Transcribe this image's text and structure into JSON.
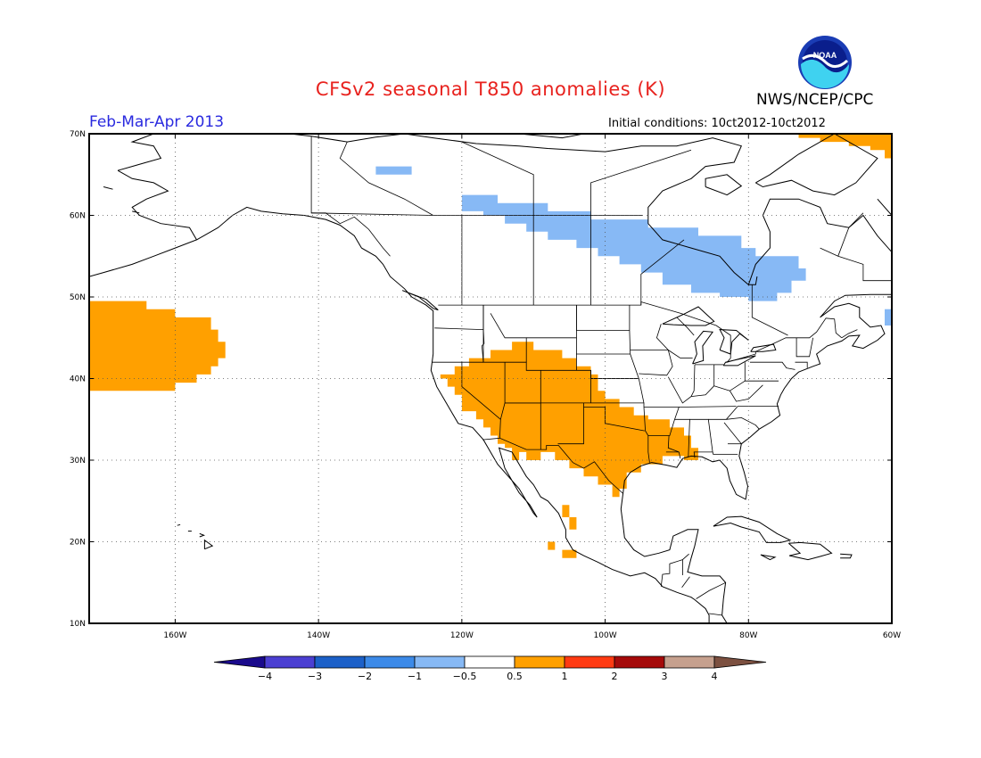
{
  "title": "CFSv2 seasonal T850 anomalies (K)",
  "agency": "NWS/NCEP/CPC",
  "logo_text": "NOAA",
  "period": "Feb-Mar-Apr 2013",
  "initial_conditions": "Initial conditions: 10ct2012-10ct2012",
  "map": {
    "lon_range": [
      -172,
      -60
    ],
    "lat_range": [
      10,
      70
    ],
    "lon_ticks": [
      {
        "lon": -160,
        "label": "160W"
      },
      {
        "lon": -140,
        "label": "140W"
      },
      {
        "lon": -120,
        "label": "120W"
      },
      {
        "lon": -100,
        "label": "100W"
      },
      {
        "lon": -80,
        "label": "80W"
      },
      {
        "lon": -60,
        "label": "60W"
      }
    ],
    "lat_ticks": [
      {
        "lat": 70,
        "label": "70N"
      },
      {
        "lat": 60,
        "label": "60N"
      },
      {
        "lat": 50,
        "label": "50N"
      },
      {
        "lat": 40,
        "label": "40N"
      },
      {
        "lat": 30,
        "label": "30N"
      },
      {
        "lat": 20,
        "label": "20N"
      },
      {
        "lat": 10,
        "label": "10N"
      }
    ],
    "grid_lines": "dotted",
    "warm_color": "#ffa000",
    "cool_color": "#87b9f5",
    "anomaly_regions": [
      {
        "name": "north-pacific-warm",
        "category": "0.5 to 1",
        "color": "#ffa000",
        "polygon": [
          [
            -172,
            49.5
          ],
          [
            -164,
            49.5
          ],
          [
            -164,
            48.5
          ],
          [
            -160,
            48.5
          ],
          [
            -160,
            47.5
          ],
          [
            -155,
            47.5
          ],
          [
            -155,
            46
          ],
          [
            -154,
            46
          ],
          [
            -154,
            44.5
          ],
          [
            -153,
            44.5
          ],
          [
            -153,
            42.5
          ],
          [
            -154,
            42.5
          ],
          [
            -154,
            41.5
          ],
          [
            -155,
            41.5
          ],
          [
            -155,
            40.5
          ],
          [
            -157,
            40.5
          ],
          [
            -157,
            39.5
          ],
          [
            -160,
            39.5
          ],
          [
            -160,
            38.5
          ],
          [
            -172,
            38.5
          ]
        ]
      },
      {
        "name": "western-us-mexico-warm",
        "category": "0.5 to 1",
        "color": "#ffa000",
        "polygon": [
          [
            -121,
            41.5
          ],
          [
            -119,
            41.5
          ],
          [
            -119,
            42.5
          ],
          [
            -116,
            42.5
          ],
          [
            -116,
            43.5
          ],
          [
            -113,
            43.5
          ],
          [
            -113,
            44.5
          ],
          [
            -110,
            44.5
          ],
          [
            -110,
            43.5
          ],
          [
            -106,
            43.5
          ],
          [
            -106,
            42.5
          ],
          [
            -104,
            42.5
          ],
          [
            -104,
            41.5
          ],
          [
            -102,
            41.5
          ],
          [
            -102,
            40.5
          ],
          [
            -101,
            40.5
          ],
          [
            -101,
            38.5
          ],
          [
            -100,
            38.5
          ],
          [
            -100,
            37.5
          ],
          [
            -98,
            37.5
          ],
          [
            -98,
            36.5
          ],
          [
            -96,
            36.5
          ],
          [
            -96,
            35.5
          ],
          [
            -94,
            35.5
          ],
          [
            -94,
            35
          ],
          [
            -91,
            35
          ],
          [
            -91,
            34
          ],
          [
            -89,
            34
          ],
          [
            -89,
            33
          ],
          [
            -88,
            33
          ],
          [
            -88,
            31.5
          ],
          [
            -87,
            31.5
          ],
          [
            -87,
            30
          ],
          [
            -89,
            30
          ],
          [
            -89,
            30.5
          ],
          [
            -92,
            30.5
          ],
          [
            -92,
            29.5
          ],
          [
            -95,
            29.5
          ],
          [
            -95,
            28.5
          ],
          [
            -97,
            28.5
          ],
          [
            -97,
            26.5
          ],
          [
            -98,
            26.5
          ],
          [
            -98,
            25.5
          ],
          [
            -99,
            25.5
          ],
          [
            -99,
            27
          ],
          [
            -101,
            27
          ],
          [
            -101,
            28
          ],
          [
            -103,
            28
          ],
          [
            -103,
            29
          ],
          [
            -105,
            29
          ],
          [
            -105,
            30
          ],
          [
            -107,
            30
          ],
          [
            -107,
            31
          ],
          [
            -109,
            31
          ],
          [
            -109,
            30
          ],
          [
            -111,
            30
          ],
          [
            -111,
            31
          ],
          [
            -112,
            31
          ],
          [
            -112,
            30
          ],
          [
            -113,
            30
          ],
          [
            -113,
            31.5
          ],
          [
            -114,
            31.5
          ],
          [
            -114,
            32
          ],
          [
            -115,
            32
          ],
          [
            -115,
            33
          ],
          [
            -116,
            33
          ],
          [
            -116,
            34
          ],
          [
            -117,
            34
          ],
          [
            -117,
            35
          ],
          [
            -118,
            35
          ],
          [
            -118,
            36
          ],
          [
            -120,
            36
          ],
          [
            -120,
            38
          ],
          [
            -121,
            38
          ],
          [
            -121,
            39
          ],
          [
            -122,
            39
          ],
          [
            -122,
            40
          ],
          [
            -123,
            40
          ],
          [
            -123,
            40.5
          ],
          [
            -121,
            40.5
          ]
        ]
      },
      {
        "name": "mexico-pacific-warm-1",
        "category": "0.5 to 1",
        "color": "#ffa000",
        "polygon": [
          [
            -106,
            24.5
          ],
          [
            -105,
            24.5
          ],
          [
            -105,
            23
          ],
          [
            -104,
            23
          ],
          [
            -104,
            21.5
          ],
          [
            -105,
            21.5
          ],
          [
            -105,
            23
          ],
          [
            -106,
            23
          ]
        ]
      },
      {
        "name": "mexico-pacific-warm-2",
        "category": "0.5 to 1",
        "color": "#ffa000",
        "polygon": [
          [
            -108,
            20
          ],
          [
            -107,
            20
          ],
          [
            -107,
            19
          ],
          [
            -108,
            19
          ]
        ]
      },
      {
        "name": "mexico-pacific-warm-3",
        "category": "0.5 to 1",
        "color": "#ffa000",
        "polygon": [
          [
            -106,
            19
          ],
          [
            -104,
            19
          ],
          [
            -104,
            18
          ],
          [
            -106,
            18
          ]
        ]
      },
      {
        "name": "greenland-warm",
        "category": "0.5 to 1",
        "color": "#ffa000",
        "polygon": [
          [
            -73,
            70
          ],
          [
            -60,
            70
          ],
          [
            -60,
            67
          ],
          [
            -61,
            67
          ],
          [
            -61,
            68
          ],
          [
            -63,
            68
          ],
          [
            -63,
            68.5
          ],
          [
            -66,
            68.5
          ],
          [
            -66,
            69
          ],
          [
            -70,
            69
          ],
          [
            -70,
            69.5
          ],
          [
            -73,
            69.5
          ]
        ]
      },
      {
        "name": "canada-cool",
        "category": "-1 to -0.5",
        "color": "#87b9f5",
        "polygon": [
          [
            -120,
            62.5
          ],
          [
            -115,
            62.5
          ],
          [
            -115,
            61.5
          ],
          [
            -108,
            61.5
          ],
          [
            -108,
            60.5
          ],
          [
            -102,
            60.5
          ],
          [
            -102,
            59.5
          ],
          [
            -94,
            59.5
          ],
          [
            -94,
            58.5
          ],
          [
            -87,
            58.5
          ],
          [
            -87,
            57.5
          ],
          [
            -81,
            57.5
          ],
          [
            -81,
            56
          ],
          [
            -79,
            56
          ],
          [
            -79,
            55
          ],
          [
            -73,
            55
          ],
          [
            -73,
            53.5
          ],
          [
            -72,
            53.5
          ],
          [
            -72,
            52
          ],
          [
            -74,
            52
          ],
          [
            -74,
            50.5
          ],
          [
            -76,
            50.5
          ],
          [
            -76,
            49.5
          ],
          [
            -80,
            49.5
          ],
          [
            -80,
            50
          ],
          [
            -84,
            50
          ],
          [
            -84,
            50.5
          ],
          [
            -88,
            50.5
          ],
          [
            -88,
            51.5
          ],
          [
            -92,
            51.5
          ],
          [
            -92,
            53
          ],
          [
            -95,
            53
          ],
          [
            -95,
            54
          ],
          [
            -98,
            54
          ],
          [
            -98,
            55
          ],
          [
            -101,
            55
          ],
          [
            -101,
            56
          ],
          [
            -104,
            56
          ],
          [
            -104,
            57
          ],
          [
            -108,
            57
          ],
          [
            -108,
            58
          ],
          [
            -111,
            58
          ],
          [
            -111,
            59
          ],
          [
            -114,
            59
          ],
          [
            -114,
            60
          ],
          [
            -117,
            60
          ],
          [
            -117,
            60.5
          ],
          [
            -120,
            60.5
          ]
        ]
      },
      {
        "name": "yukon-cool",
        "category": "-1 to -0.5",
        "color": "#87b9f5",
        "polygon": [
          [
            -132,
            66
          ],
          [
            -127,
            66
          ],
          [
            -127,
            65
          ],
          [
            -132,
            65
          ]
        ]
      },
      {
        "name": "labrador-cool",
        "category": "-1 to -0.5",
        "color": "#87b9f5",
        "polygon": [
          [
            -61,
            48.5
          ],
          [
            -60,
            48.5
          ],
          [
            -60,
            46.5
          ],
          [
            -61,
            46.5
          ]
        ]
      }
    ]
  },
  "colorbar": {
    "labels": [
      "-4",
      "-3",
      "-2",
      "-1",
      "-0.5",
      "0.5",
      "1",
      "2",
      "3",
      "4"
    ],
    "colors": [
      "#1a0a8c",
      "#4b3fd2",
      "#1c60c8",
      "#3c8ae8",
      "#87b9f5",
      "#ffffff",
      "#ffa000",
      "#ff3a12",
      "#a50a0a",
      "#c6a08e",
      "#7c5040"
    ]
  }
}
